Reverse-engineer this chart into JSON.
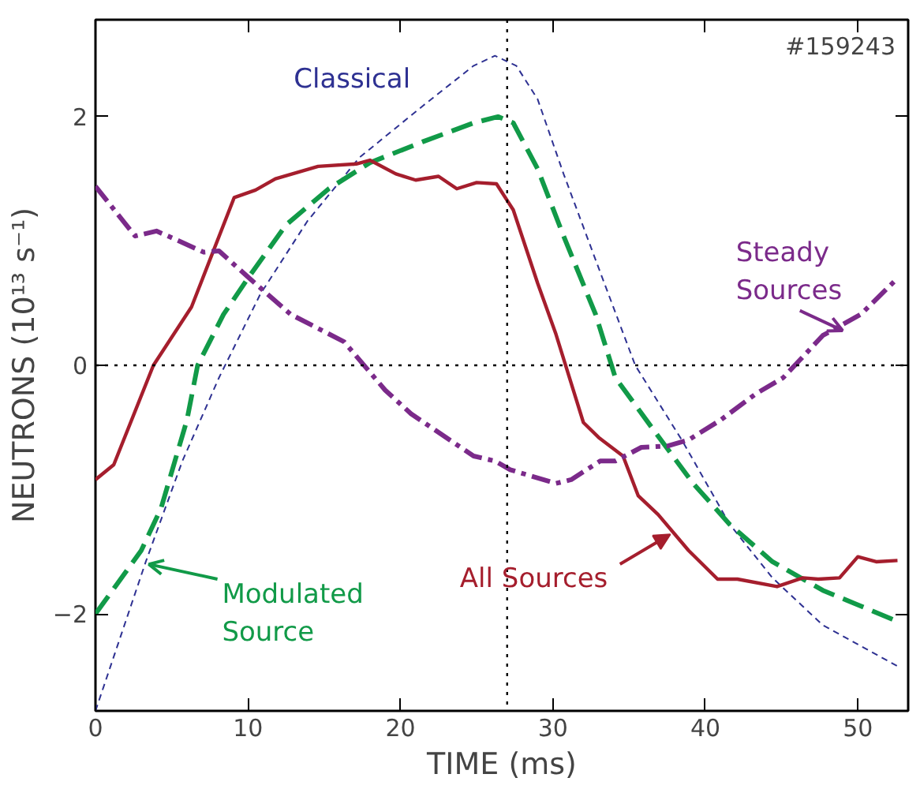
{
  "chart_data": {
    "type": "line",
    "xlabel": "TIME (ms)",
    "ylabel": "NEUTRONS (10¹³ s⁻¹)",
    "xlim": [
      0,
      53.3
    ],
    "ylim": [
      -2.78,
      2.78
    ],
    "xticks": [
      0,
      10,
      20,
      30,
      40,
      50
    ],
    "yticks": [
      -2,
      0,
      2
    ],
    "grid": false,
    "annotations": [
      "#159243"
    ],
    "ref_lines": [
      {
        "axis": "y",
        "value": 0,
        "line_style": "dotted",
        "color": "#000000"
      },
      {
        "axis": "x",
        "value": 27,
        "line_style": "dotted",
        "color": "#000000"
      }
    ],
    "series": [
      {
        "name": "Classical",
        "color": "#2e3192",
        "line_style": "dashed",
        "x": [
          0,
          3.3,
          5.7,
          8.1,
          10.8,
          13.9,
          17.3,
          21.5,
          24.8,
          26.2,
          27.6,
          29.0,
          30.7,
          33.1,
          35.4,
          38.5,
          41.6,
          44.4,
          47.7,
          52.6
        ],
        "values": [
          -2.78,
          -1.58,
          -0.77,
          -0.1,
          0.57,
          1.16,
          1.67,
          2.09,
          2.41,
          2.49,
          2.41,
          2.14,
          1.54,
          0.75,
          0,
          -0.61,
          -1.28,
          -1.71,
          -2.09,
          -2.42
        ]
      },
      {
        "name": "Modulated\nSource",
        "color": "#119a48",
        "line_style": "dashed",
        "x": [
          0,
          1.0,
          3.0,
          4.3,
          6.0,
          6.7,
          8.4,
          10.0,
          12.5,
          15.3,
          18.0,
          21.5,
          24.8,
          26.4,
          27.4,
          29.0,
          30.7,
          32.8,
          34.1,
          36.9,
          39.2,
          41.6,
          44.4,
          47.7,
          52.6
        ],
        "values": [
          -2.0,
          -1.83,
          -1.49,
          -1.15,
          -0.44,
          0,
          0.41,
          0.7,
          1.13,
          1.42,
          1.63,
          1.8,
          1.95,
          2.0,
          1.95,
          1.58,
          1.04,
          0.41,
          -0.1,
          -0.57,
          -0.95,
          -1.28,
          -1.58,
          -1.81,
          -2.06
        ]
      },
      {
        "name": "All Sources",
        "color": "#a51e2d",
        "line_style": "solid",
        "x": [
          0,
          1.2,
          3.8,
          6.3,
          9.1,
          10.5,
          11.8,
          14.6,
          17.1,
          18.0,
          19.7,
          21.0,
          22.5,
          23.7,
          25.0,
          26.3,
          27.4,
          29.0,
          30.2,
          32.0,
          33.0,
          34.6,
          35.6,
          36.9,
          38.9,
          40.8,
          42.1,
          44.7,
          46.4,
          47.4,
          48.8,
          50.0,
          51.2,
          52.6
        ],
        "values": [
          -0.92,
          -0.8,
          0,
          0.47,
          1.35,
          1.41,
          1.5,
          1.6,
          1.62,
          1.65,
          1.54,
          1.49,
          1.52,
          1.42,
          1.47,
          1.46,
          1.25,
          0.66,
          0.25,
          -0.46,
          -0.58,
          -0.73,
          -1.05,
          -1.2,
          -1.49,
          -1.72,
          -1.72,
          -1.78,
          -1.71,
          -1.72,
          -1.71,
          -1.54,
          -1.58,
          -1.57
        ]
      },
      {
        "name": "Steady\nSources",
        "color": "#7b2a8a",
        "line_style": "dashdot",
        "x": [
          0,
          2.6,
          4.0,
          5.3,
          7.1,
          8.1,
          10.1,
          12.8,
          16.3,
          19.0,
          20.7,
          22.5,
          24.8,
          26.2,
          27.2,
          30.2,
          31.2,
          33.1,
          34.1,
          35.8,
          37.5,
          38.9,
          41.0,
          43.3,
          45.1,
          46.1,
          47.7,
          50.2,
          52.6
        ],
        "values": [
          1.44,
          1.04,
          1.08,
          1.01,
          0.91,
          0.92,
          0.7,
          0.41,
          0.19,
          -0.2,
          -0.39,
          -0.54,
          -0.73,
          -0.77,
          -0.84,
          -0.95,
          -0.92,
          -0.77,
          -0.77,
          -0.66,
          -0.65,
          -0.6,
          -0.44,
          -0.23,
          -0.1,
          0.03,
          0.24,
          0.41,
          0.7
        ]
      }
    ]
  }
}
